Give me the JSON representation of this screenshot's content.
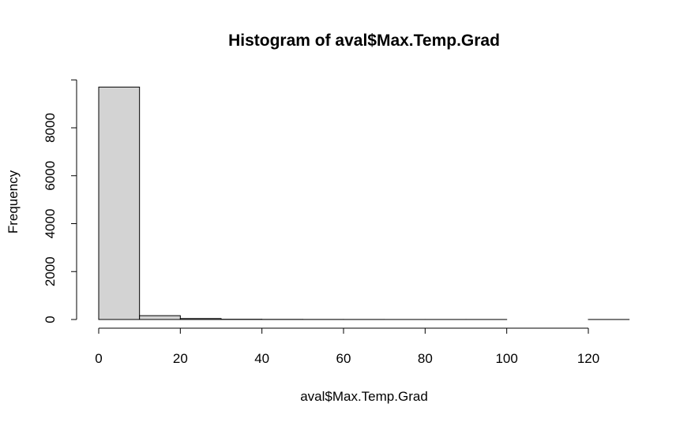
{
  "chart_data": {
    "type": "bar",
    "title": "Histogram of aval$Max.Temp.Grad",
    "xlabel": "aval$Max.Temp.Grad",
    "ylabel": "Frequency",
    "bin_edges": [
      0,
      10,
      20,
      30,
      40,
      50,
      60,
      70,
      80,
      90,
      100,
      110,
      120,
      130
    ],
    "values": [
      9700,
      160,
      40,
      10,
      5,
      3,
      2,
      1,
      1,
      1,
      0,
      0,
      1
    ],
    "xlim": [
      0,
      130
    ],
    "ylim": [
      0,
      10000
    ],
    "x_ticks": [
      0,
      20,
      40,
      60,
      80,
      100,
      120
    ],
    "y_ticks": [
      0,
      2000,
      4000,
      6000,
      8000
    ],
    "x_tick_labels": [
      "0",
      "20",
      "40",
      "60",
      "80",
      "100",
      "120"
    ],
    "y_tick_labels": [
      "0",
      "2000",
      "4000",
      "6000",
      "8000"
    ],
    "grid": false,
    "bar_color": "#d3d3d3",
    "bar_border_color": "#000000"
  }
}
